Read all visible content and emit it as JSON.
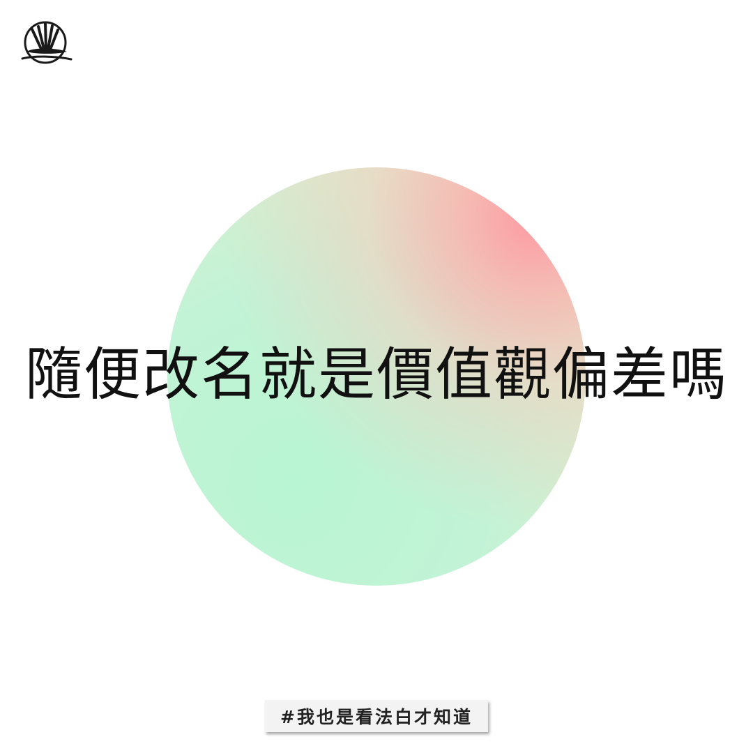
{
  "logo": {
    "icon": "brand-logo-icon"
  },
  "headline": "隨便改名就是價值觀偏差嗎",
  "hashtag": "#我也是看法白才知道",
  "colors": {
    "background": "#ffffff",
    "circle_green": "#b8f5d2",
    "circle_pink": "#ff96a0",
    "text": "#111111",
    "tag_background": "#f3f3f3"
  }
}
